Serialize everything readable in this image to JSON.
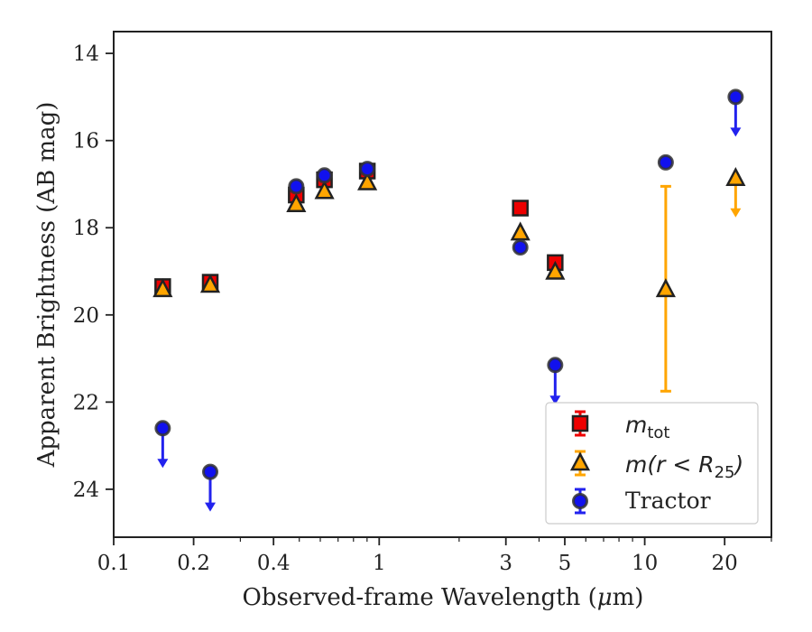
{
  "chart_data": {
    "type": "scatter",
    "xlabel_prefix": "Observed-frame Wavelength (",
    "xlabel_unit_mu": "μ",
    "xlabel_unit_rest": "m)",
    "ylabel": "Apparent Brightness (AB mag)",
    "x_scale": "log",
    "xlim": [
      0.1,
      30
    ],
    "ylim": [
      25.1,
      13.5
    ],
    "y_inverted": true,
    "x_ticks": [
      0.1,
      0.2,
      0.4,
      1,
      3,
      5,
      10,
      20
    ],
    "x_tick_labels": [
      "0.1",
      "0.2",
      "0.4",
      "1",
      "3",
      "5",
      "10",
      "20"
    ],
    "y_ticks": [
      14,
      16,
      18,
      20,
      22,
      24
    ],
    "y_tick_labels": [
      "14",
      "16",
      "18",
      "20",
      "22",
      "24"
    ],
    "grid": false,
    "legend_position": "lower-right",
    "series": [
      {
        "name": "m_tot",
        "legend_symbol": "m",
        "legend_subscript": "tot",
        "marker": "square",
        "color": "#ee0000",
        "edge_color": "#222222",
        "errorbar_color": "#ee0000",
        "points": [
          {
            "x": 0.153,
            "y": 19.35
          },
          {
            "x": 0.231,
            "y": 19.25
          },
          {
            "x": 0.487,
            "y": 17.25
          },
          {
            "x": 0.622,
            "y": 16.9
          },
          {
            "x": 0.902,
            "y": 16.7
          },
          {
            "x": 3.4,
            "y": 17.55
          },
          {
            "x": 4.6,
            "y": 18.8
          }
        ]
      },
      {
        "name": "m(r < R25)",
        "legend_symbol": "m(r < R",
        "legend_subscript": "25",
        "legend_suffix": ")",
        "marker": "triangle",
        "color": "#ffa500",
        "edge_color": "#222222",
        "errorbar_color": "#ffa500",
        "points": [
          {
            "x": 0.153,
            "y": 19.4
          },
          {
            "x": 0.231,
            "y": 19.3
          },
          {
            "x": 0.487,
            "y": 17.45
          },
          {
            "x": 0.622,
            "y": 17.15
          },
          {
            "x": 0.902,
            "y": 16.95
          },
          {
            "x": 3.4,
            "y": 18.1
          },
          {
            "x": 4.6,
            "y": 19.0
          },
          {
            "x": 12.0,
            "y": 19.4,
            "err_low": 17.05,
            "err_high": 21.75
          },
          {
            "x": 22.0,
            "y": 16.85,
            "upper_limit": true
          }
        ]
      },
      {
        "name": "Tractor",
        "marker": "circle",
        "color": "#1111ee",
        "edge_color": "#333333",
        "errorbar_color": "#2222ee",
        "points": [
          {
            "x": 0.153,
            "y": 22.6,
            "upper_limit": true
          },
          {
            "x": 0.231,
            "y": 23.6,
            "upper_limit": true
          },
          {
            "x": 0.487,
            "y": 17.05
          },
          {
            "x": 0.622,
            "y": 16.8
          },
          {
            "x": 0.902,
            "y": 16.65
          },
          {
            "x": 3.4,
            "y": 18.45
          },
          {
            "x": 4.6,
            "y": 21.15,
            "upper_limit": true
          },
          {
            "x": 12.0,
            "y": 16.5
          },
          {
            "x": 22.0,
            "y": 15.0,
            "upper_limit": true
          }
        ]
      }
    ]
  }
}
